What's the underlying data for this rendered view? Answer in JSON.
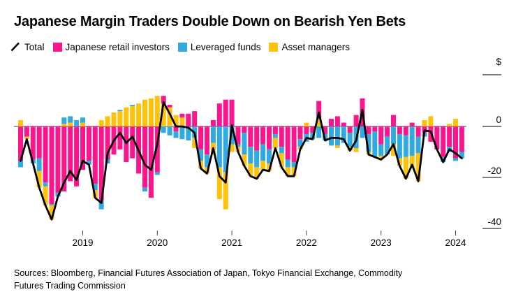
{
  "title": "Japanese Margin Traders Double Down on Bearish Yen Bets",
  "legend": [
    {
      "label": "Total",
      "type": "line",
      "color": "#000000"
    },
    {
      "label": "Japanese retail investors",
      "type": "swatch",
      "color": "#fb168d"
    },
    {
      "label": "Leveraged funds",
      "type": "swatch",
      "color": "#32aae1"
    },
    {
      "label": "Asset managers",
      "type": "swatch",
      "color": "#ffc20a"
    }
  ],
  "source_line1": "Sources: Bloomberg, Financial Futures Association of Japan, Tokyo Financial Exchange, Commodity",
  "source_line2": "Futures Trading Commission",
  "chart_data": {
    "type": "bar",
    "subtype": "stacked monthly bars with total line overlay",
    "title": "Japanese Margin Traders Double Down on Bearish Yen Bets",
    "xlabel": "",
    "ylabel": "$",
    "unit_label": "$",
    "ylim": [
      -42,
      14
    ],
    "grid": false,
    "legend_position": "top",
    "y_ticks": [
      {
        "value": 0,
        "label": "0"
      },
      {
        "value": -20,
        "label": "-20"
      },
      {
        "value": -40,
        "label": "-40"
      }
    ],
    "x_ticks": [
      {
        "index": 10,
        "label": "2019"
      },
      {
        "index": 22,
        "label": "2020"
      },
      {
        "index": 34,
        "label": "2021"
      },
      {
        "index": 46,
        "label": "2022"
      },
      {
        "index": 58,
        "label": "2023"
      },
      {
        "index": 70,
        "label": "2024"
      }
    ],
    "months": [
      "2018-03",
      "2018-04",
      "2018-05",
      "2018-06",
      "2018-07",
      "2018-08",
      "2018-09",
      "2018-10",
      "2018-11",
      "2018-12",
      "2019-01",
      "2019-02",
      "2019-03",
      "2019-04",
      "2019-05",
      "2019-06",
      "2019-07",
      "2019-08",
      "2019-09",
      "2019-10",
      "2019-11",
      "2019-12",
      "2020-01",
      "2020-02",
      "2020-03",
      "2020-04",
      "2020-05",
      "2020-06",
      "2020-07",
      "2020-08",
      "2020-09",
      "2020-10",
      "2020-11",
      "2020-12",
      "2021-01",
      "2021-02",
      "2021-03",
      "2021-04",
      "2021-05",
      "2021-06",
      "2021-07",
      "2021-08",
      "2021-09",
      "2021-10",
      "2021-11",
      "2021-12",
      "2022-01",
      "2022-02",
      "2022-03",
      "2022-04",
      "2022-05",
      "2022-06",
      "2022-07",
      "2022-08",
      "2022-09",
      "2022-10",
      "2022-11",
      "2022-12",
      "2023-01",
      "2023-02",
      "2023-03",
      "2023-04",
      "2023-05",
      "2023-06",
      "2023-07",
      "2023-08",
      "2023-09",
      "2023-10",
      "2023-11",
      "2023-12",
      "2024-01",
      "2024-02"
    ],
    "series": [
      {
        "name": "Japanese retail investors",
        "key": "japanese_retail_investors",
        "color": "#fb168d",
        "values": [
          -13.5,
          -4,
          -13,
          -12.5,
          -22,
          -30.5,
          -26,
          -25.5,
          -21.5,
          -23.5,
          -17,
          -13.5,
          -22.5,
          -29,
          -13,
          -11,
          -9,
          -14,
          -12.5,
          -18.5,
          -24,
          -28,
          -18,
          3,
          1,
          -2,
          1.5,
          5,
          6,
          -9,
          -11,
          2.5,
          9,
          10.5,
          10.5,
          -7,
          -2.5,
          -8,
          -9.5,
          -7,
          -9,
          -3,
          -8,
          -13,
          -14,
          -5,
          -3,
          -2.5,
          7,
          -3,
          3,
          4,
          1.5,
          -2.5,
          4.5,
          11,
          -3,
          -2,
          -7,
          -4,
          4.5,
          -3,
          -3.5,
          1.5,
          -4,
          -2.5,
          -6,
          -9,
          -12,
          -8,
          -12.5,
          -10
        ]
      },
      {
        "name": "Leveraged funds",
        "key": "leveraged_funds",
        "color": "#32aae1",
        "values": [
          -2.5,
          0,
          -1.5,
          -5,
          -1.5,
          -0.5,
          -1.5,
          2.5,
          2.5,
          2.5,
          2,
          -1.5,
          -2.5,
          -3.5,
          -1.5,
          0,
          0.5,
          0,
          0.5,
          0,
          -1.5,
          0,
          -1,
          -2.5,
          -3.5,
          -2.5,
          -5,
          -5.5,
          -4.5,
          -4.5,
          -5,
          -6.5,
          -16,
          -18,
          -7,
          -1,
          -8.5,
          -6.5,
          -6.5,
          -6.5,
          -5.5,
          -1.5,
          -2.5,
          -3,
          -2,
          -3,
          -3,
          -2.5,
          -4.5,
          -2.5,
          -7.5,
          -7.5,
          -6.5,
          -5.5,
          -8.5,
          -4.5,
          -7,
          -10,
          -4.5,
          -7,
          -7,
          -9.5,
          -8.5,
          -11.5,
          -6.5,
          -1.5,
          0,
          0,
          -2,
          -2,
          -1,
          -2.5
        ]
      },
      {
        "name": "Asset managers",
        "key": "asset_managers",
        "color": "#ffc20a",
        "values": [
          2.5,
          -1,
          0,
          -6.5,
          -7.5,
          -5.5,
          0,
          1,
          1.5,
          0,
          1.5,
          0,
          -3,
          2.5,
          4,
          5.5,
          6,
          7.5,
          8,
          9,
          10.5,
          11,
          12,
          9,
          7.5,
          4.5,
          3.5,
          0,
          -4,
          -3,
          -2.5,
          -4.5,
          -12.5,
          -14.5,
          -3,
          -2,
          -4.5,
          -5,
          -4.5,
          -3.5,
          -3,
          -4,
          -5.5,
          -3.5,
          -3.5,
          -1,
          1.5,
          0,
          3,
          0,
          0,
          -1,
          0,
          -1.5,
          -1.5,
          0,
          -1,
          0,
          -1.5,
          0,
          -4.5,
          -3,
          -8.5,
          -5,
          -11,
          2.5,
          4,
          0,
          0,
          1,
          3,
          0
        ]
      }
    ],
    "total_line": {
      "name": "Total",
      "color": "#000000",
      "values": [
        -13.5,
        -5,
        -14.5,
        -24,
        -31,
        -36.5,
        -27.5,
        -22,
        -17.5,
        -21,
        -13.5,
        -15,
        -28,
        -30,
        -10.5,
        -5.5,
        -2.5,
        -6.5,
        -4,
        -9.5,
        -15,
        -17,
        -7,
        9.5,
        5,
        0,
        0,
        -0.5,
        -2.5,
        -16.5,
        -18.5,
        -8.5,
        -19.5,
        -22,
        0.5,
        -10,
        -15.5,
        -19.5,
        -20.5,
        -17,
        -17.5,
        -8.5,
        -16,
        -19.5,
        -19.5,
        -9,
        -4.5,
        -5,
        5.5,
        -5.5,
        -4.5,
        -4.5,
        -5,
        -9.5,
        -5.5,
        6.5,
        -11,
        -12,
        -13,
        -11,
        -7,
        -15.5,
        -20.5,
        -15,
        -21.5,
        -1.5,
        -2,
        -9,
        -14,
        -9,
        -10.5,
        -12.5
      ]
    }
  }
}
